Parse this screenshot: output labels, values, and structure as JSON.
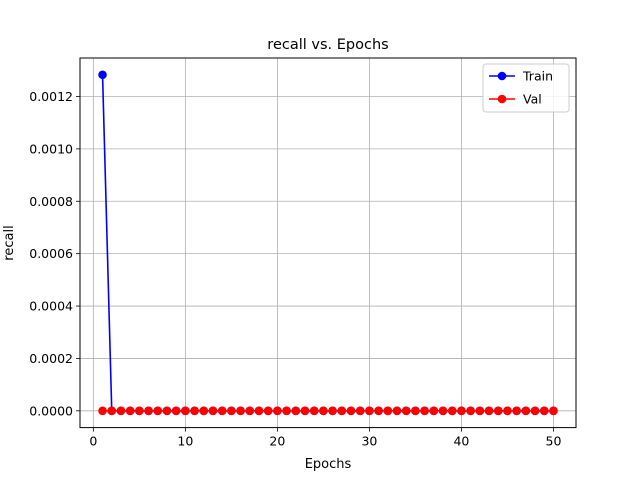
{
  "chart_data": {
    "type": "line",
    "title": "recall vs. Epochs",
    "xlabel": "Epochs",
    "ylabel": "recall",
    "xlim": [
      -1.45,
      52.45
    ],
    "ylim": [
      -6.41e-05,
      0.001347
    ],
    "xticks": [
      0,
      10,
      20,
      30,
      40,
      50
    ],
    "yticks": [
      0,
      0.0002,
      0.0004,
      0.0006,
      0.0008,
      0.001,
      0.0012
    ],
    "ytick_labels": [
      "0.0000",
      "0.0002",
      "0.0004",
      "0.0006",
      "0.0008",
      "0.0010",
      "0.0012"
    ],
    "grid": true,
    "legend_position": "top-right",
    "x": [
      1,
      2,
      3,
      4,
      5,
      6,
      7,
      8,
      9,
      10,
      11,
      12,
      13,
      14,
      15,
      16,
      17,
      18,
      19,
      20,
      21,
      22,
      23,
      24,
      25,
      26,
      27,
      28,
      29,
      30,
      31,
      32,
      33,
      34,
      35,
      36,
      37,
      38,
      39,
      40,
      41,
      42,
      43,
      44,
      45,
      46,
      47,
      48,
      49,
      50
    ],
    "series": [
      {
        "name": "Train",
        "color": "#0000ff",
        "values": [
          0.001283,
          0,
          0,
          0,
          0,
          0,
          0,
          0,
          0,
          0,
          0,
          0,
          0,
          0,
          0,
          0,
          0,
          0,
          0,
          0,
          0,
          0,
          0,
          0,
          0,
          0,
          0,
          0,
          0,
          0,
          0,
          0,
          0,
          0,
          0,
          0,
          0,
          0,
          0,
          0,
          0,
          0,
          0,
          0,
          0,
          0,
          0,
          0,
          0,
          0
        ]
      },
      {
        "name": "Val",
        "color": "#ff0000",
        "values": [
          0,
          0,
          0,
          0,
          0,
          0,
          0,
          0,
          0,
          0,
          0,
          0,
          0,
          0,
          0,
          0,
          0,
          0,
          0,
          0,
          0,
          0,
          0,
          0,
          0,
          0,
          0,
          0,
          0,
          0,
          0,
          0,
          0,
          0,
          0,
          0,
          0,
          0,
          0,
          0,
          0,
          0,
          0,
          0,
          0,
          0,
          0,
          0,
          0,
          0
        ]
      }
    ]
  }
}
